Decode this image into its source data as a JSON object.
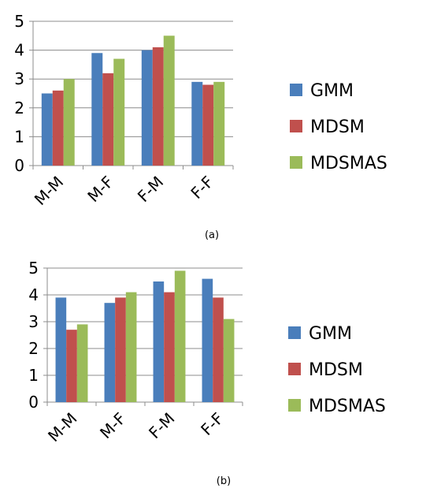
{
  "chart_data": [
    {
      "type": "bar",
      "caption": "(a)",
      "categories": [
        "M-M",
        "M-F",
        "F-M",
        "F-F"
      ],
      "ylim": [
        0,
        5
      ],
      "yticks": [
        "0",
        "1",
        "2",
        "3",
        "4",
        "5"
      ],
      "grid": true,
      "legend_position": "right",
      "series": [
        {
          "name": "GMM",
          "color": "#4A7EBB",
          "values": [
            2.5,
            3.9,
            4.0,
            2.9
          ]
        },
        {
          "name": "MDSM",
          "color": "#C0504D",
          "values": [
            2.6,
            3.2,
            4.1,
            2.8
          ]
        },
        {
          "name": "MDSMAS",
          "color": "#9BBB59",
          "values": [
            3.0,
            3.7,
            4.5,
            2.9
          ]
        }
      ]
    },
    {
      "type": "bar",
      "caption": "(b)",
      "categories": [
        "M-M",
        "M-F",
        "F-M",
        "F-F"
      ],
      "ylim": [
        0,
        5
      ],
      "yticks": [
        "0",
        "1",
        "2",
        "3",
        "4",
        "5"
      ],
      "grid": true,
      "legend_position": "right",
      "series": [
        {
          "name": "GMM",
          "color": "#4A7EBB",
          "values": [
            3.9,
            3.7,
            4.5,
            4.6
          ]
        },
        {
          "name": "MDSM",
          "color": "#C0504D",
          "values": [
            2.7,
            3.9,
            4.1,
            3.9
          ]
        },
        {
          "name": "MDSMAS",
          "color": "#9BBB59",
          "values": [
            2.9,
            4.1,
            4.9,
            3.1
          ]
        }
      ]
    }
  ]
}
